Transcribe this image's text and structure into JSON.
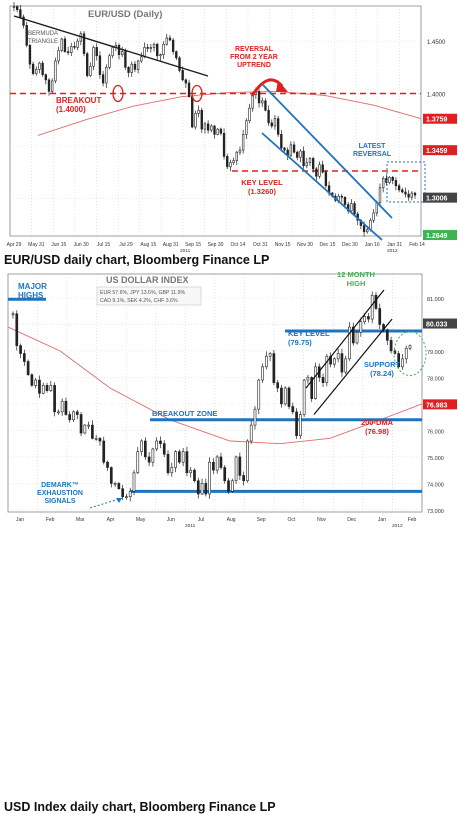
{
  "colors": {
    "candle": "#222222",
    "downtrend_line": "#1a1a1a",
    "red": "#e02020",
    "blue": "#1f74c0",
    "green": "#3fb34f",
    "dma": "#e06b6b",
    "price_tag_gray": "#444444",
    "price_tag_red": "#e02020",
    "price_tag_green": "#3fb34f"
  },
  "chart_data": [
    {
      "type": "candlestick",
      "title": "EUR/USD (Daily)",
      "caption": "EUR/USD daily chart, Bloomberg Finance LP",
      "x_ticks": [
        "Apr 29",
        "May 31",
        "Jun 15",
        "Jun 30",
        "Jul 15",
        "Jul 29",
        "Aug 15",
        "Aug 31",
        "Sep 15",
        "Sep 30",
        "Oct 14",
        "Oct 31",
        "Nov 15",
        "Nov 30",
        "Dec 15",
        "Dec 30",
        "Jan 16",
        "Jan 31",
        "Feb 14"
      ],
      "x_sub_labels": [
        "2011",
        "2012"
      ],
      "y_ticks": [
        "1.4500",
        "1.4000"
      ],
      "price_tags": [
        {
          "label": "1.3759",
          "color": "red"
        },
        {
          "label": "1.3459",
          "color": "red"
        },
        {
          "label": "1.3006",
          "color": "gray"
        },
        {
          "label": "1.2649",
          "color": "green"
        }
      ],
      "levels": {
        "breakout": 1.4,
        "key_level": 1.326,
        "dma": [
          1.36,
          1.375,
          1.388,
          1.397,
          1.401,
          1.402,
          1.398,
          1.389,
          1.376
        ]
      },
      "series": [
        {
          "values": [
            1.483,
            1.48,
            1.473,
            1.465,
            1.446,
            1.428,
            1.419,
            1.423,
            1.429,
            1.418,
            1.413,
            1.402,
            1.412,
            1.431,
            1.441,
            1.452,
            1.44,
            1.439,
            1.445,
            1.444,
            1.45,
            1.457,
            1.438,
            1.417,
            1.426,
            1.444,
            1.436,
            1.418,
            1.41,
            1.425,
            1.436,
            1.444,
            1.446,
            1.437,
            1.44,
            1.425,
            1.42,
            1.428,
            1.423,
            1.431,
            1.435,
            1.444,
            1.443,
            1.444,
            1.447,
            1.436,
            1.437,
            1.447,
            1.453,
            1.451,
            1.44,
            1.434,
            1.422,
            1.413,
            1.41,
            1.397,
            1.368,
            1.381,
            1.384,
            1.366,
            1.371,
            1.365,
            1.369,
            1.361,
            1.366,
            1.362,
            1.34,
            1.33,
            1.334,
            1.336,
            1.344,
            1.346,
            1.361,
            1.374,
            1.386,
            1.399,
            1.402,
            1.391,
            1.393,
            1.384,
            1.372,
            1.369,
            1.376,
            1.361,
            1.348,
            1.346,
            1.341,
            1.351,
            1.344,
            1.339,
            1.345,
            1.331,
            1.334,
            1.338,
            1.328,
            1.321,
            1.332,
            1.325,
            1.312,
            1.305,
            1.302,
            1.298,
            1.302,
            1.301,
            1.294,
            1.288,
            1.295,
            1.285,
            1.279,
            1.274,
            1.268,
            1.27,
            1.279,
            1.286,
            1.296,
            1.31,
            1.319,
            1.315,
            1.32,
            1.317,
            1.312,
            1.308,
            1.306,
            1.304,
            1.301,
            1.305,
            1.303
          ]
        }
      ],
      "annotations": {
        "title": "EUR/USD (Daily)",
        "bermuda": [
          "BERMUDA",
          "TRIANGLE"
        ],
        "breakout": [
          "BREAKOUT",
          "(1.4000)"
        ],
        "reversal": [
          "REVERSAL",
          "FROM 2 YEAR",
          "UPTREND"
        ],
        "latest": [
          "LATEST",
          "REVERSAL"
        ],
        "key_level": [
          "KEY LEVEL",
          "(1.3260)"
        ]
      }
    },
    {
      "type": "candlestick",
      "title": "US DOLLAR INDEX",
      "caption": "USD Index daily chart, Bloomberg Finance LP",
      "x_ticks": [
        "Jan",
        "Feb",
        "Mar",
        "Apr",
        "May",
        "Jun",
        "Jul",
        "Aug",
        "Sep",
        "Oct",
        "Nov",
        "Dec",
        "Jan",
        "Feb"
      ],
      "x_sub_labels": [
        "2011",
        "2012"
      ],
      "y_ticks": [
        "81.000",
        "80.000",
        "79.000",
        "78.000",
        "77.000",
        "76.000",
        "75.000",
        "74.000",
        "73.000"
      ],
      "price_tags": [
        {
          "label": "80.033",
          "color": "gray"
        },
        {
          "label": "76.983",
          "color": "red"
        }
      ],
      "weights": [
        "EUR 57.6%, JPY 13.6%, GBP 11.9%",
        "CAD 9.1%, SEK 4.2%, CHF 3.6%"
      ],
      "levels": {
        "major_highs": 80.8,
        "key_level": 79.75,
        "support": 78.24,
        "breakout_zone": 76.4,
        "exhaustion": 73.7,
        "dma_200": 76.98
      },
      "series": [
        {
          "values": [
            80.4,
            79.2,
            78.9,
            78.6,
            78.1,
            77.7,
            77.9,
            77.4,
            77.7,
            77.5,
            77.7,
            76.7,
            76.7,
            77.1,
            76.6,
            76.4,
            76.7,
            76.6,
            75.9,
            76.2,
            76.2,
            75.7,
            75.7,
            75.6,
            74.8,
            74.6,
            74.0,
            74.0,
            73.8,
            73.5,
            73.5,
            73.7,
            74.4,
            75.2,
            75.6,
            75.0,
            74.8,
            75.3,
            75.6,
            75.5,
            75.1,
            74.4,
            74.6,
            75.2,
            74.8,
            75.2,
            74.4,
            74.5,
            74.1,
            73.6,
            74.0,
            73.6,
            74.8,
            74.5,
            75.0,
            74.6,
            74.1,
            73.7,
            74.1,
            75.0,
            74.3,
            74.1,
            75.6,
            76.2,
            76.8,
            77.9,
            78.4,
            78.8,
            78.9,
            77.8,
            77.6,
            77.0,
            77.6,
            76.9,
            76.7,
            75.8,
            76.6,
            77.9,
            78.0,
            77.2,
            78.4,
            78.0,
            77.8,
            78.8,
            78.5,
            78.7,
            78.9,
            78.2,
            78.7,
            79.9,
            79.3,
            79.7,
            80.1,
            80.3,
            80.2,
            81.1,
            80.6,
            80.0,
            79.8,
            79.4,
            79.0,
            78.9,
            78.4,
            78.7,
            79.1,
            79.2
          ]
        }
      ],
      "annotations": {
        "title": "US DOLLAR INDEX",
        "major_highs": [
          "MAJOR",
          "HIGHS"
        ],
        "twelve_month": [
          "12 MONTH",
          "HIGH"
        ],
        "key_level": [
          "KEY LEVEL",
          "(79.75)"
        ],
        "support": [
          "SUPPORT",
          "(78.24)"
        ],
        "breakout_zone": "BREAKOUT ZONE",
        "dma": [
          "200-DMA",
          "(76.98)"
        ],
        "demark": [
          "DEMARK™",
          "EXHAUSTION",
          "SIGNALS"
        ]
      }
    }
  ]
}
